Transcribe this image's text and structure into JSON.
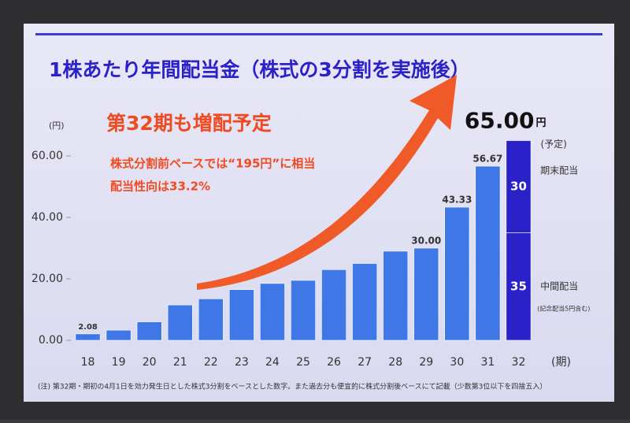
{
  "chart_data": {
    "type": "bar",
    "title": "1株あたり年間配当金（株式の3分割を実施後）",
    "y_unit": "(円)",
    "x_unit": "(期)",
    "categories": [
      "18",
      "19",
      "20",
      "21",
      "22",
      "23",
      "24",
      "25",
      "26",
      "27",
      "28",
      "29",
      "30",
      "31",
      "32"
    ],
    "series": [
      {
        "color": "#3f78e6",
        "values": [
          2.08,
          3.3,
          6.0,
          11.5,
          13.5,
          16.5,
          18.5,
          19.5,
          23.0,
          25.0,
          29.0,
          30.0,
          43.33,
          56.67,
          null
        ],
        "value_labels": [
          "2.08",
          null,
          null,
          null,
          null,
          null,
          null,
          null,
          null,
          null,
          null,
          "30.00",
          "43.33",
          "56.67",
          null
        ]
      },
      {
        "name": "中間配当",
        "color": "#2a22c8",
        "values": [
          null,
          null,
          null,
          null,
          null,
          null,
          null,
          null,
          null,
          null,
          null,
          null,
          null,
          null,
          35
        ],
        "value_labels": [
          null,
          null,
          null,
          null,
          null,
          null,
          null,
          null,
          null,
          null,
          null,
          null,
          null,
          null,
          "35"
        ]
      },
      {
        "name": "期末配当",
        "color": "#2a22c8",
        "values": [
          null,
          null,
          null,
          null,
          null,
          null,
          null,
          null,
          null,
          null,
          null,
          null,
          null,
          null,
          30
        ],
        "value_labels": [
          null,
          null,
          null,
          null,
          null,
          null,
          null,
          null,
          null,
          null,
          null,
          null,
          null,
          null,
          "30"
        ]
      }
    ],
    "total": {
      "value": 65.0,
      "label": "65.00",
      "unit": "円",
      "note": "(予定)"
    },
    "interim_note": "(記念配当5円含む)",
    "ylim": [
      0,
      70
    ],
    "yticks": [
      {
        "value": 0,
        "label": "0.00"
      },
      {
        "value": 20,
        "label": "20.00"
      },
      {
        "value": 40,
        "label": "40.00"
      },
      {
        "value": 60,
        "label": "60.00"
      }
    ],
    "grid": false,
    "annotations": [
      "第32期も増配予定",
      "株式分割前ベースでは“195円”に相当",
      "配当性向は33.2%"
    ],
    "footnote": "(注) 第32期・期初の4月1日を効力発生日とした株式3分割をベースとした数字。また過去分も便宜的に株式分割後ベースにて記載（少数第3位以下を四捨五入）"
  }
}
